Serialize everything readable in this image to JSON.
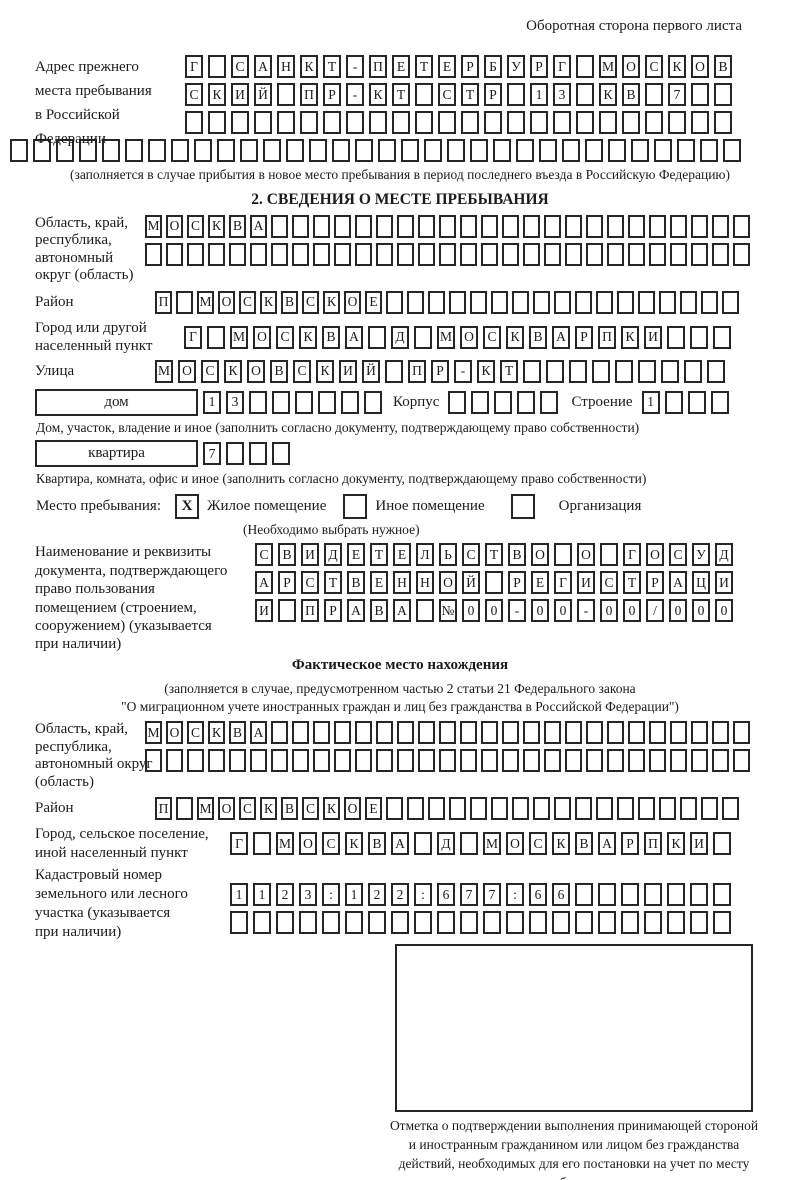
{
  "page": {
    "header_note": "Оборотная сторона первого листа"
  },
  "prev_address": {
    "label_lines": [
      "Адрес прежнего",
      "места пребывания",
      "в Российской",
      "Федерации"
    ],
    "rows": [
      {
        "text": "Г САНКТ-ПЕТЕРБУРГ МОСКОВ",
        "count": 24
      },
      {
        "text": "СКИЙ ПР-КТ СТР 13 КВ 7",
        "count": 24
      },
      {
        "text": "",
        "count": 24
      },
      {
        "text": "",
        "count": 32
      }
    ],
    "note": "(заполняется в случае прибытия в новое место пребывания в период последнего въезда в Российскую Федерацию)"
  },
  "section2": {
    "title": "2. СВЕДЕНИЯ О МЕСТЕ ПРЕБЫВАНИЯ",
    "region": {
      "label_lines": [
        "Область, край,",
        "республика,",
        "автономный",
        "округ (область)"
      ],
      "rows": [
        {
          "text": "МОСКВА",
          "count": 29
        },
        {
          "text": "",
          "count": 29
        }
      ]
    },
    "district": {
      "label": "Район",
      "row": {
        "text": "П МОСКВСКОЕ",
        "count": 28
      }
    },
    "city": {
      "label_lines": [
        "Город или другой",
        "населенный пункт"
      ],
      "row": {
        "text": "Г МОСКВА Д МОСКВАРПКИ",
        "count": 24
      }
    },
    "street": {
      "label": "Улица",
      "row": {
        "text": "МОСКОВСКИЙ ПР-КТ",
        "count": 25
      }
    },
    "house": {
      "box_label": "дом",
      "cells": {
        "text": "13",
        "count": 8
      },
      "korpus_label": "Корпус",
      "korpus_cells": {
        "text": "",
        "count": 5
      },
      "stroenie_label": "Строение",
      "stroenie_cells": {
        "text": "1",
        "count": 4
      }
    },
    "house_note": "Дом, участок, владение и иное (заполнить согласно документу, подтверждающему право собственности)",
    "apartment": {
      "box_label": "квартира",
      "cells": {
        "text": "7",
        "count": 4
      }
    },
    "apartment_note": "Квартира, комната, офис и иное (заполнить согласно документу, подтверждающему право собственности)",
    "stay_type": {
      "label": "Место пребывания:",
      "options": [
        {
          "checked": "X",
          "label": "Жилое помещение"
        },
        {
          "checked": "",
          "label": "Иное помещение"
        },
        {
          "checked": "",
          "label": "Организация"
        }
      ],
      "note": "(Необходимо выбрать нужное)"
    },
    "doc": {
      "label_lines": [
        "Наименование и реквизиты",
        "документа, подтверждающего",
        "право пользования",
        "помещением (строением,",
        "сооружением) (указывается",
        "при наличии)"
      ],
      "rows": [
        {
          "text": "СВИДЕТЕЛЬСТВО О ГОСУД",
          "count": 21
        },
        {
          "text": "АРСТВЕННОЙ РЕГИСТРАЦИ",
          "count": 21
        },
        {
          "text": "И ПРАВА №00-00-00/000",
          "count": 21
        }
      ]
    }
  },
  "actual_location": {
    "title": "Фактическое место нахождения",
    "note_lines": [
      "(заполняется в случае, предусмотренном частью 2 статьи 21 Федерального закона",
      "\"О миграционном учете иностранных граждан и лиц без гражданства в Российской Федерации\")"
    ],
    "region": {
      "label_lines": [
        "Область, край,",
        "республика,",
        "автономный округ",
        "(область)"
      ],
      "rows": [
        {
          "text": "МОСКВА",
          "count": 29
        },
        {
          "text": "",
          "count": 29
        }
      ]
    },
    "district": {
      "label": "Район",
      "row": {
        "text": "П МОСКВСКОЕ",
        "count": 28
      }
    },
    "city": {
      "label_lines": [
        "Город, сельское поселение,",
        "иной населенный пункт"
      ],
      "row": {
        "text": "Г МОСКВА Д МОСКВАРПКИ",
        "count": 22
      }
    },
    "cadastral": {
      "label_lines": [
        "Кадастровый номер",
        "земельного или лесного",
        "участка (указывается",
        "при наличии)"
      ],
      "rows": [
        {
          "text": "1123:122:677:66",
          "count": 22
        },
        {
          "text": "",
          "count": 22
        }
      ]
    }
  },
  "confirmation": {
    "caption": "Отметка о подтверждении выполнения принимающей стороной и иностранным гражданином или лицом без гражданства действий, необходимых для его постановки на учет по месту пребывания"
  }
}
